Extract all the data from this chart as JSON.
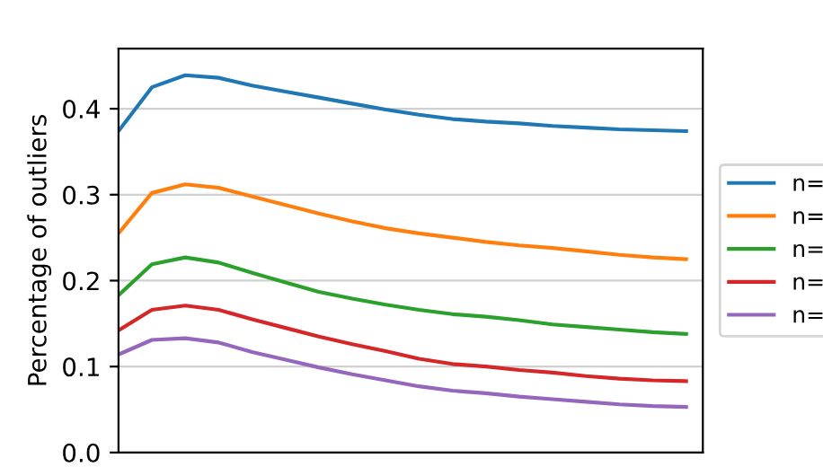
{
  "chart_data": {
    "type": "line",
    "ylabel": "Percentage of outliers",
    "categories": [
      null,
      null,
      null,
      null,
      null,
      null,
      null,
      null,
      null,
      null,
      null,
      null,
      null,
      null,
      null,
      null,
      null,
      null
    ],
    "series": [
      {
        "name": "n=",
        "color": "#1f77b4",
        "values": [
          0.374,
          0.425,
          0.439,
          0.436,
          0.427,
          0.42,
          0.413,
          0.406,
          0.399,
          0.393,
          0.388,
          0.385,
          0.383,
          0.38,
          0.378,
          0.376,
          0.375,
          0.374
        ]
      },
      {
        "name": "n=",
        "color": "#ff7f0e",
        "values": [
          0.255,
          0.302,
          0.312,
          0.308,
          0.298,
          0.288,
          0.278,
          0.269,
          0.261,
          0.255,
          0.25,
          0.245,
          0.241,
          0.238,
          0.234,
          0.23,
          0.227,
          0.225
        ]
      },
      {
        "name": "n=",
        "color": "#2ca02c",
        "values": [
          0.183,
          0.219,
          0.227,
          0.221,
          0.209,
          0.198,
          0.187,
          0.179,
          0.172,
          0.166,
          0.161,
          0.158,
          0.154,
          0.149,
          0.146,
          0.143,
          0.14,
          0.138
        ]
      },
      {
        "name": "n=",
        "color": "#d62728",
        "values": [
          0.142,
          0.166,
          0.171,
          0.166,
          0.155,
          0.145,
          0.135,
          0.126,
          0.118,
          0.109,
          0.103,
          0.1,
          0.096,
          0.093,
          0.089,
          0.086,
          0.084,
          0.083
        ]
      },
      {
        "name": "n=",
        "color": "#9467bd",
        "values": [
          0.114,
          0.131,
          0.133,
          0.128,
          0.117,
          0.108,
          0.099,
          0.091,
          0.084,
          0.077,
          0.072,
          0.069,
          0.065,
          0.062,
          0.059,
          0.056,
          0.054,
          0.053
        ]
      }
    ],
    "ylim": [
      0,
      0.47
    ],
    "yticks": [
      {
        "value": 0,
        "label": "0.0"
      },
      0.1,
      0.2,
      0.3,
      0.4
    ],
    "grid": "y",
    "legend": "right"
  }
}
